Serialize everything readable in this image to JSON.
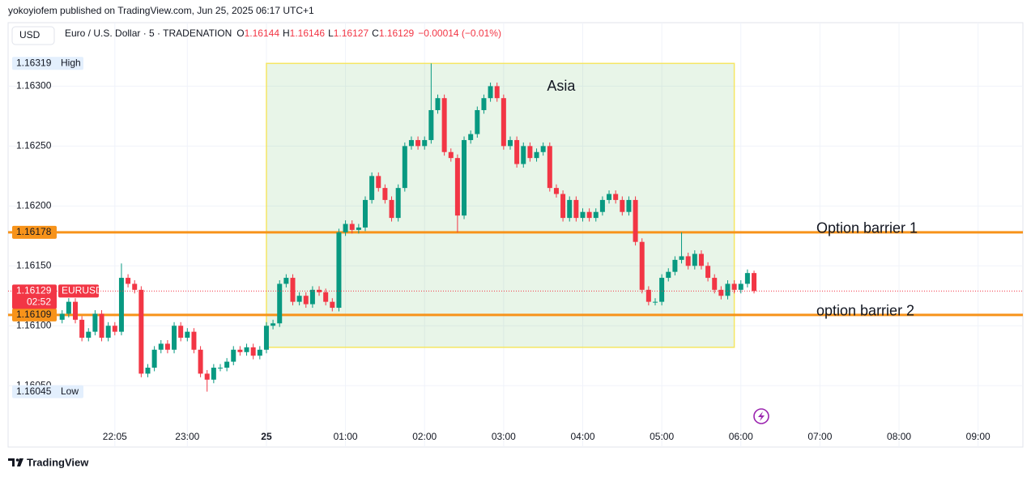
{
  "header": {
    "text": "yokoyiofem published on TradingView.com, Jun 25, 2025 06:17 UTC+1"
  },
  "toolbar": {
    "currency": "USD"
  },
  "footer": {
    "brand": "TradingView"
  },
  "chart_data": {
    "type": "candlestick",
    "legend": {
      "symbol": "Euro / U.S. Dollar · 5 · TRADENATION",
      "items": [
        {
          "label": "O",
          "value": 1.16144
        },
        {
          "label": "H",
          "value": 1.16146
        },
        {
          "label": "L",
          "value": 1.16127
        },
        {
          "label": "C",
          "value": 1.16129
        }
      ],
      "change": "−0.00014 (−0.01%)"
    },
    "x": [
      "21:25",
      "21:30",
      "21:35",
      "21:40",
      "21:45",
      "21:50",
      "21:55",
      "22:00",
      "22:05",
      "22:10",
      "22:15",
      "22:20",
      "22:25",
      "22:30",
      "22:35",
      "22:40",
      "22:45",
      "22:50",
      "22:55",
      "23:00",
      "23:05",
      "23:10",
      "23:15",
      "23:20",
      "23:25",
      "23:30",
      "23:35",
      "23:40",
      "23:45",
      "23:50",
      "23:55",
      "00:00",
      "00:05",
      "00:10",
      "00:15",
      "00:20",
      "00:25",
      "00:30",
      "00:35",
      "00:40",
      "00:45",
      "00:50",
      "00:55",
      "01:00",
      "01:05",
      "01:10",
      "01:15",
      "01:20",
      "01:25",
      "01:30",
      "01:35",
      "01:40",
      "01:45",
      "01:50",
      "01:55",
      "02:00",
      "02:05",
      "02:10",
      "02:15",
      "02:20",
      "02:25",
      "02:30",
      "02:35",
      "02:40",
      "02:45",
      "02:50",
      "02:55",
      "03:00",
      "03:05",
      "03:10",
      "03:15",
      "03:20",
      "03:25",
      "03:30",
      "03:35",
      "03:40",
      "03:45",
      "03:50",
      "03:55",
      "04:00",
      "04:05",
      "04:10",
      "04:15",
      "04:20",
      "04:25",
      "04:30",
      "04:35",
      "04:40",
      "04:45",
      "04:50",
      "04:55",
      "05:00",
      "05:05",
      "05:10",
      "05:15",
      "05:20",
      "05:25",
      "05:30",
      "05:35",
      "05:40",
      "05:45",
      "05:50",
      "05:55",
      "06:00",
      "06:05",
      "06:10"
    ],
    "series": [
      {
        "name": "EURUSD",
        "up_color": "#089981",
        "down_color": "#f23645",
        "open": [
          1.16105,
          1.1611,
          1.1612,
          1.16105,
          1.1609,
          1.16095,
          1.1611,
          1.1609,
          1.161,
          1.16095,
          1.1614,
          1.16135,
          1.1613,
          1.1606,
          1.16065,
          1.1608,
          1.16085,
          1.1608,
          1.161,
          1.1609,
          1.16095,
          1.1608,
          1.1606,
          1.16055,
          1.16065,
          1.16065,
          1.1607,
          1.1608,
          1.16078,
          1.16082,
          1.16075,
          1.1608,
          1.161,
          1.16102,
          1.16135,
          1.1614,
          1.1612,
          1.16125,
          1.16118,
          1.1613,
          1.16128,
          1.1612,
          1.16115,
          1.16178,
          1.16185,
          1.1618,
          1.16182,
          1.16205,
          1.16225,
          1.16215,
          1.16205,
          1.1619,
          1.16215,
          1.1625,
          1.16255,
          1.1625,
          1.16255,
          1.1628,
          1.1629,
          1.16245,
          1.1624,
          1.16192,
          1.16255,
          1.1626,
          1.1628,
          1.1629,
          1.163,
          1.1629,
          1.1625,
          1.16255,
          1.16235,
          1.1625,
          1.1624,
          1.16245,
          1.1625,
          1.16215,
          1.1621,
          1.1619,
          1.16205,
          1.1619,
          1.16195,
          1.1619,
          1.16195,
          1.16205,
          1.1621,
          1.16205,
          1.16195,
          1.16205,
          1.1617,
          1.1613,
          1.1612,
          1.1612,
          1.1614,
          1.16145,
          1.16155,
          1.16158,
          1.1615,
          1.1616,
          1.1615,
          1.1614,
          1.1613,
          1.16125,
          1.16135,
          1.1613,
          1.16135,
          1.16144
        ],
        "high": [
          1.16113,
          1.16123,
          1.16123,
          1.16108,
          1.16098,
          1.16113,
          1.16113,
          1.16103,
          1.16103,
          1.16152,
          1.16143,
          1.16138,
          1.16133,
          1.16068,
          1.16083,
          1.16088,
          1.16088,
          1.16103,
          1.16103,
          1.16098,
          1.16098,
          1.16083,
          1.16063,
          1.16068,
          1.16068,
          1.16073,
          1.16083,
          1.16083,
          1.16085,
          1.16085,
          1.16083,
          1.16103,
          1.16105,
          1.16138,
          1.16143,
          1.16143,
          1.16128,
          1.16128,
          1.16133,
          1.16133,
          1.16131,
          1.16123,
          1.16181,
          1.16188,
          1.16188,
          1.16185,
          1.16208,
          1.16228,
          1.16228,
          1.16218,
          1.16208,
          1.16218,
          1.16253,
          1.16258,
          1.16258,
          1.16258,
          1.16319,
          1.16293,
          1.16293,
          1.16248,
          1.16243,
          1.16258,
          1.16263,
          1.16283,
          1.16293,
          1.16303,
          1.16303,
          1.16293,
          1.16258,
          1.16258,
          1.16253,
          1.16253,
          1.16248,
          1.16253,
          1.16253,
          1.16218,
          1.16213,
          1.16208,
          1.16208,
          1.16198,
          1.16198,
          1.16198,
          1.16208,
          1.16213,
          1.16213,
          1.16208,
          1.16208,
          1.16208,
          1.16173,
          1.16133,
          1.16123,
          1.16143,
          1.16148,
          1.16158,
          1.16178,
          1.16161,
          1.16163,
          1.16163,
          1.16153,
          1.16143,
          1.16133,
          1.16138,
          1.16138,
          1.16138,
          1.16147,
          1.16146
        ],
        "low": [
          1.16102,
          1.16107,
          1.16102,
          1.16087,
          1.16087,
          1.16092,
          1.16087,
          1.16087,
          1.16092,
          1.16092,
          1.16132,
          1.16127,
          1.16057,
          1.16057,
          1.16062,
          1.16077,
          1.16077,
          1.16077,
          1.16087,
          1.16087,
          1.16077,
          1.16057,
          1.16045,
          1.16052,
          1.16062,
          1.16062,
          1.16067,
          1.16075,
          1.16075,
          1.16072,
          1.16072,
          1.16077,
          1.16097,
          1.16099,
          1.16132,
          1.16117,
          1.16117,
          1.16115,
          1.16115,
          1.16125,
          1.16117,
          1.16112,
          1.16112,
          1.16175,
          1.16177,
          1.16177,
          1.16179,
          1.16202,
          1.16212,
          1.16202,
          1.16187,
          1.16187,
          1.16212,
          1.16247,
          1.16247,
          1.16247,
          1.16252,
          1.16277,
          1.16242,
          1.16237,
          1.16178,
          1.16189,
          1.16252,
          1.16257,
          1.16277,
          1.16287,
          1.16287,
          1.16247,
          1.16247,
          1.16232,
          1.16232,
          1.16237,
          1.16237,
          1.16242,
          1.16212,
          1.16207,
          1.16187,
          1.16187,
          1.16187,
          1.16187,
          1.16187,
          1.16187,
          1.16192,
          1.16202,
          1.16202,
          1.16192,
          1.16192,
          1.16167,
          1.16127,
          1.16117,
          1.16117,
          1.16117,
          1.16137,
          1.16142,
          1.16152,
          1.16147,
          1.16147,
          1.16147,
          1.16137,
          1.16127,
          1.16122,
          1.16122,
          1.16127,
          1.16127,
          1.16132,
          1.16127
        ],
        "close": [
          1.1611,
          1.1612,
          1.16105,
          1.1609,
          1.16095,
          1.1611,
          1.1609,
          1.161,
          1.16095,
          1.1614,
          1.16135,
          1.1613,
          1.1606,
          1.16065,
          1.1608,
          1.16085,
          1.1608,
          1.161,
          1.1609,
          1.16095,
          1.1608,
          1.1606,
          1.16055,
          1.16065,
          1.16065,
          1.1607,
          1.1608,
          1.16078,
          1.16082,
          1.16075,
          1.1608,
          1.161,
          1.16102,
          1.16135,
          1.1614,
          1.1612,
          1.16125,
          1.16118,
          1.1613,
          1.16128,
          1.1612,
          1.16115,
          1.16178,
          1.16185,
          1.1618,
          1.16182,
          1.16205,
          1.16225,
          1.16215,
          1.16205,
          1.1619,
          1.16215,
          1.1625,
          1.16255,
          1.1625,
          1.16255,
          1.1628,
          1.1629,
          1.16245,
          1.1624,
          1.16192,
          1.16255,
          1.1626,
          1.1628,
          1.1629,
          1.163,
          1.1629,
          1.1625,
          1.16255,
          1.16235,
          1.1625,
          1.1624,
          1.16245,
          1.1625,
          1.16215,
          1.1621,
          1.1619,
          1.16205,
          1.1619,
          1.16195,
          1.1619,
          1.16195,
          1.16205,
          1.1621,
          1.16205,
          1.16195,
          1.16205,
          1.1617,
          1.1613,
          1.1612,
          1.1612,
          1.1614,
          1.16145,
          1.16155,
          1.16158,
          1.1615,
          1.1616,
          1.1615,
          1.1614,
          1.1613,
          1.16125,
          1.16135,
          1.1613,
          1.16135,
          1.16144,
          1.16129
        ]
      }
    ],
    "xlim": [
      "20:44",
      "09:34"
    ],
    "xticks": [
      "22:05",
      "23:00",
      {
        "value": "00:00",
        "label": "25"
      },
      "01:00",
      "02:00",
      "03:00",
      "04:00",
      "05:00",
      "06:00",
      "07:00",
      "08:00",
      "09:00"
    ],
    "ylim": [
      1.16017,
      1.16353
    ],
    "yticks": [
      {
        "value": 1.163,
        "label": "1.16300"
      },
      {
        "value": 1.1625,
        "label": "1.16250"
      },
      {
        "value": 1.162,
        "label": "1.16200"
      },
      {
        "value": 1.1615,
        "label": "1.16150"
      },
      {
        "value": 1.161,
        "label": "1.16100"
      },
      {
        "value": 1.1605,
        "label": "1.16050"
      }
    ],
    "grid": true,
    "high": {
      "label": "High",
      "value": 1.16319
    },
    "low": {
      "label": "Low",
      "value": 1.16045
    },
    "current": {
      "value": 1.16129,
      "symbol": "EURUSD",
      "countdown": "02:52",
      "color": "#f23645"
    },
    "hlines": [
      {
        "label": "Option barrier 1",
        "value": 1.16178,
        "color": "#f7931a"
      },
      {
        "label": "option barrier 2",
        "value": 1.16109,
        "color": "#f7931a"
      }
    ],
    "box": {
      "label": "Asia",
      "x": [
        "00:00",
        "05:55"
      ],
      "y": [
        1.16319,
        1.16082
      ],
      "color": "#4caf50",
      "border": "#f5e663"
    }
  }
}
